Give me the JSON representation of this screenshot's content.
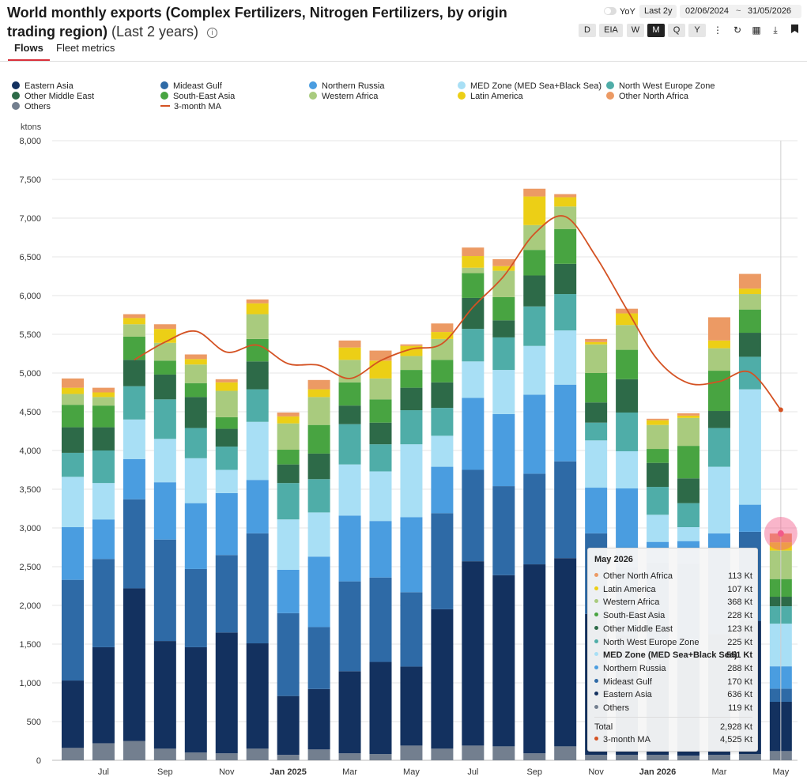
{
  "header": {
    "title": "World monthly exports (Complex Fertilizers, Nitrogen Fertilizers, by origin trading region)",
    "period": "(Last 2 years)",
    "info_icon": "i"
  },
  "tabs": [
    {
      "label": "Flows",
      "active": true
    },
    {
      "label": "Fleet metrics",
      "active": false
    }
  ],
  "controls": {
    "yoy_label": "YoY",
    "range_label": "Last 2y",
    "date_from": "02/06/2024",
    "date_sep": "~",
    "date_to": "31/05/2026",
    "granularity": [
      "D",
      "EIA",
      "W",
      "M",
      "Q",
      "Y"
    ],
    "granularity_selected": "M",
    "icons": [
      "more-vertical-icon",
      "refresh-icon",
      "grid-icon",
      "download-icon",
      "bookmark-icon"
    ]
  },
  "colors": {
    "Eastern Asia": "#13315f",
    "Mideast Gulf": "#2e6aa6",
    "Northern Russia": "#4a9de0",
    "MED Zone (MED Sea+Black Sea)": "#a8dff5",
    "North West Europe Zone": "#4fada8",
    "Other Middle East": "#2d6a48",
    "South-East Asia": "#48a441",
    "Western Africa": "#a9cb7e",
    "Latin America": "#eccf16",
    "Other North Africa": "#ec9a64",
    "Others": "#737f8f",
    "3-month MA": "#d45223"
  },
  "chart_data": {
    "type": "bar",
    "stacked": true,
    "ylabel": "ktons",
    "ylim": [
      0,
      8000
    ],
    "yticks": [
      0,
      500,
      1000,
      1500,
      2000,
      2500,
      3000,
      3500,
      4000,
      4500,
      5000,
      5500,
      6000,
      6500,
      7000,
      7500,
      8000
    ],
    "ytick_labels": [
      "0",
      "500",
      "1,000",
      "1,500",
      "2,000",
      "2,500",
      "3,000",
      "3,500",
      "4,000",
      "4,500",
      "5,000",
      "5,500",
      "6,000",
      "6,500",
      "7,000",
      "7,500",
      "8,000"
    ],
    "categories": [
      "Jun 2024",
      "Jul 2024",
      "Aug 2024",
      "Sep 2024",
      "Oct 2024",
      "Nov 2024",
      "Dec 2024",
      "Jan 2025",
      "Feb 2025",
      "Mar 2025",
      "Apr 2025",
      "May 2025",
      "Jun 2025",
      "Jul 2025",
      "Aug 2025",
      "Sep 2025",
      "Oct 2025",
      "Nov 2025",
      "Dec 2025",
      "Jan 2026",
      "Feb 2026",
      "Mar 2026",
      "Apr 2026",
      "May 2026"
    ],
    "x_tick_labels": [
      {
        "index": 1,
        "label": "Jul"
      },
      {
        "index": 3,
        "label": "Sep"
      },
      {
        "index": 5,
        "label": "Nov"
      },
      {
        "index": 7,
        "label": "Jan 2025"
      },
      {
        "index": 9,
        "label": "Mar"
      },
      {
        "index": 11,
        "label": "May"
      },
      {
        "index": 13,
        "label": "Jul"
      },
      {
        "index": 15,
        "label": "Sep"
      },
      {
        "index": 17,
        "label": "Nov"
      },
      {
        "index": 19,
        "label": "Jan 2026"
      },
      {
        "index": 21,
        "label": "Mar"
      },
      {
        "index": 23,
        "label": "May"
      }
    ],
    "series": [
      {
        "name": "Others",
        "values": [
          160,
          220,
          250,
          150,
          100,
          90,
          150,
          70,
          140,
          90,
          80,
          190,
          150,
          190,
          180,
          90,
          180,
          70,
          70,
          70,
          60,
          70,
          80,
          119
        ]
      },
      {
        "name": "Eastern Asia",
        "values": [
          870,
          1240,
          1970,
          1390,
          1360,
          1560,
          1360,
          760,
          780,
          1060,
          1190,
          1020,
          1800,
          2380,
          2210,
          2440,
          2430,
          1820,
          1550,
          1260,
          1400,
          1560,
          1720,
          636
        ]
      },
      {
        "name": "Mideast Gulf",
        "values": [
          1300,
          1140,
          1150,
          1310,
          1010,
          1000,
          1420,
          1070,
          800,
          1160,
          1090,
          960,
          1240,
          1180,
          1150,
          1170,
          1250,
          1040,
          870,
          1220,
          1080,
          1110,
          1150,
          170
        ]
      },
      {
        "name": "Northern Russia",
        "values": [
          680,
          510,
          520,
          740,
          850,
          800,
          690,
          560,
          910,
          850,
          730,
          970,
          600,
          930,
          930,
          1020,
          990,
          590,
          1020,
          270,
          290,
          190,
          350,
          288
        ]
      },
      {
        "name": "MED Zone (MED Sea+Black Sea)",
        "values": [
          650,
          470,
          510,
          560,
          580,
          300,
          750,
          650,
          570,
          660,
          640,
          940,
          400,
          470,
          570,
          630,
          700,
          610,
          480,
          350,
          180,
          860,
          1490,
          551
        ]
      },
      {
        "name": "North West Europe Zone",
        "values": [
          310,
          420,
          430,
          510,
          390,
          300,
          420,
          470,
          430,
          520,
          350,
          440,
          360,
          420,
          420,
          510,
          470,
          230,
          500,
          360,
          310,
          500,
          420,
          225
        ]
      },
      {
        "name": "Other Middle East",
        "values": [
          330,
          300,
          340,
          320,
          400,
          230,
          360,
          240,
          330,
          240,
          280,
          290,
          330,
          400,
          220,
          400,
          390,
          260,
          430,
          310,
          320,
          220,
          310,
          123
        ]
      },
      {
        "name": "South-East Asia",
        "values": [
          290,
          280,
          300,
          180,
          180,
          150,
          290,
          190,
          370,
          300,
          300,
          230,
          290,
          320,
          300,
          330,
          450,
          380,
          380,
          180,
          420,
          520,
          300,
          228
        ]
      },
      {
        "name": "Western Africa",
        "values": [
          140,
          110,
          160,
          230,
          240,
          340,
          320,
          340,
          360,
          290,
          270,
          180,
          270,
          70,
          340,
          320,
          290,
          370,
          320,
          310,
          360,
          290,
          200,
          368
        ]
      },
      {
        "name": "Latin America",
        "values": [
          80,
          60,
          80,
          180,
          70,
          110,
          140,
          90,
          100,
          160,
          230,
          130,
          90,
          150,
          60,
          370,
          120,
          30,
          150,
          60,
          30,
          100,
          70,
          107
        ]
      },
      {
        "name": "Other North Africa",
        "values": [
          120,
          60,
          50,
          60,
          60,
          40,
          50,
          50,
          120,
          90,
          130,
          20,
          110,
          110,
          90,
          100,
          40,
          40,
          60,
          20,
          30,
          300,
          190,
          113
        ]
      }
    ],
    "ma_series": {
      "name": "3-month MA",
      "values": [
        null,
        null,
        5170,
        5400,
        5540,
        5270,
        5360,
        5120,
        5100,
        4930,
        5160,
        5310,
        5380,
        5850,
        6250,
        6800,
        7020,
        6500,
        5820,
        5170,
        4870,
        4890,
        5010,
        4525
      ]
    },
    "hover_index": 23
  },
  "legend": [
    {
      "label": "Eastern Asia",
      "type": "dot"
    },
    {
      "label": "Mideast Gulf",
      "type": "dot"
    },
    {
      "label": "Northern Russia",
      "type": "dot"
    },
    {
      "label": "MED Zone (MED Sea+Black Sea)",
      "type": "dot"
    },
    {
      "label": "North West Europe Zone",
      "type": "dot"
    },
    {
      "label": "Other Middle East",
      "type": "dot"
    },
    {
      "label": "South-East Asia",
      "type": "dot"
    },
    {
      "label": "Western Africa",
      "type": "dot"
    },
    {
      "label": "Latin America",
      "type": "dot"
    },
    {
      "label": "Other North Africa",
      "type": "dot"
    },
    {
      "label": "Others",
      "type": "dot"
    },
    {
      "label": "3-month MA",
      "type": "line"
    }
  ],
  "tooltip": {
    "title": "May 2026",
    "rows": [
      {
        "label": "Other North Africa",
        "value": "113 Kt"
      },
      {
        "label": "Latin America",
        "value": "107 Kt"
      },
      {
        "label": "Western Africa",
        "value": "368 Kt"
      },
      {
        "label": "South-East Asia",
        "value": "228 Kt"
      },
      {
        "label": "Other Middle East",
        "value": "123 Kt"
      },
      {
        "label": "North West Europe Zone",
        "value": "225 Kt"
      },
      {
        "label": "MED Zone (MED Sea+Black Sea)",
        "value": "551 Kt",
        "bold": true
      },
      {
        "label": "Northern Russia",
        "value": "288 Kt"
      },
      {
        "label": "Mideast Gulf",
        "value": "170 Kt"
      },
      {
        "label": "Eastern Asia",
        "value": "636 Kt"
      },
      {
        "label": "Others",
        "value": "119 Kt"
      }
    ],
    "total_label": "Total",
    "total_value": "2,928 Kt",
    "ma_label": "3-month MA",
    "ma_value": "4,525 Kt"
  }
}
